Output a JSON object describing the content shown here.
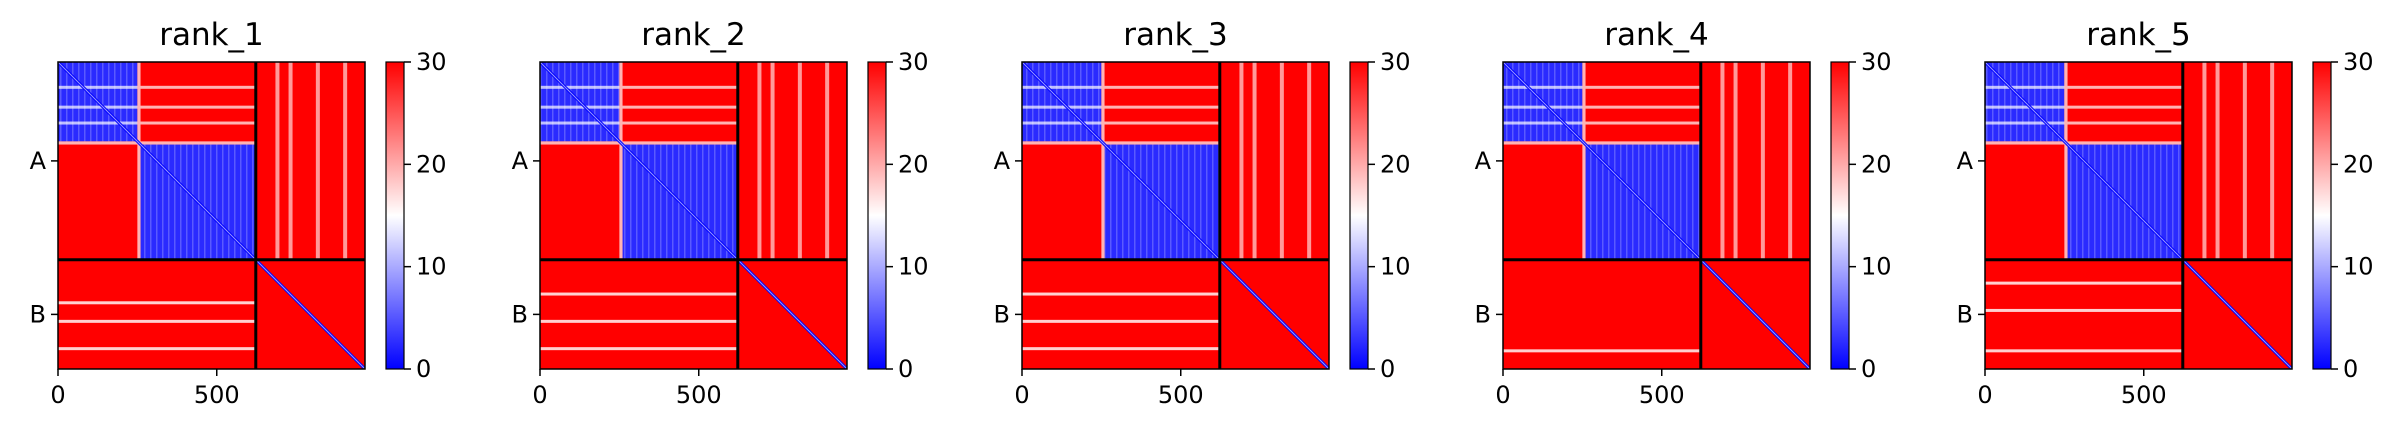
{
  "chart_data": [
    {
      "type": "heatmap",
      "title": "rank_1",
      "chains": [
        {
          "label": "A",
          "start": 0,
          "end": 623
        },
        {
          "label": "B",
          "start": 623,
          "end": 967
        }
      ],
      "xticks": [
        0,
        500
      ],
      "xlim": [
        0,
        967
      ],
      "colorbar": {
        "min": 0,
        "max": 30,
        "ticks": [
          0,
          10,
          20,
          30
        ],
        "colors": [
          "#0000ff",
          "#ffffff",
          "#ff0000"
        ]
      },
      "blue_blocks": [
        [
          0,
          250
        ],
        [
          260,
          623
        ]
      ],
      "b_row_lines": [
        0.38,
        0.55,
        0.8
      ]
    },
    {
      "type": "heatmap",
      "title": "rank_2",
      "chains": [
        {
          "label": "A",
          "start": 0,
          "end": 623
        },
        {
          "label": "B",
          "start": 623,
          "end": 967
        }
      ],
      "xticks": [
        0,
        500
      ],
      "xlim": [
        0,
        967
      ],
      "colorbar": {
        "min": 0,
        "max": 30,
        "ticks": [
          0,
          10,
          20,
          30
        ],
        "colors": [
          "#0000ff",
          "#ffffff",
          "#ff0000"
        ]
      },
      "blue_blocks": [
        [
          0,
          250
        ],
        [
          260,
          623
        ]
      ],
      "b_row_lines": [
        0.3,
        0.55,
        0.8
      ]
    },
    {
      "type": "heatmap",
      "title": "rank_3",
      "chains": [
        {
          "label": "A",
          "start": 0,
          "end": 623
        },
        {
          "label": "B",
          "start": 623,
          "end": 967
        }
      ],
      "xticks": [
        0,
        500
      ],
      "xlim": [
        0,
        967
      ],
      "colorbar": {
        "min": 0,
        "max": 30,
        "ticks": [
          0,
          10,
          20,
          30
        ],
        "colors": [
          "#0000ff",
          "#ffffff",
          "#ff0000"
        ]
      },
      "blue_blocks": [
        [
          0,
          250
        ],
        [
          260,
          623
        ]
      ],
      "b_row_lines": [
        0.3,
        0.55,
        0.8
      ]
    },
    {
      "type": "heatmap",
      "title": "rank_4",
      "chains": [
        {
          "label": "A",
          "start": 0,
          "end": 623
        },
        {
          "label": "B",
          "start": 623,
          "end": 967
        }
      ],
      "xticks": [
        0,
        500
      ],
      "xlim": [
        0,
        967
      ],
      "colorbar": {
        "min": 0,
        "max": 30,
        "ticks": [
          0,
          10,
          20,
          30
        ],
        "colors": [
          "#0000ff",
          "#ffffff",
          "#ff0000"
        ]
      },
      "blue_blocks": [
        [
          0,
          250
        ],
        [
          260,
          623
        ]
      ],
      "b_row_lines": [
        0.82
      ]
    },
    {
      "type": "heatmap",
      "title": "rank_5",
      "chains": [
        {
          "label": "A",
          "start": 0,
          "end": 623
        },
        {
          "label": "B",
          "start": 623,
          "end": 967
        }
      ],
      "xticks": [
        0,
        500
      ],
      "xlim": [
        0,
        967
      ],
      "colorbar": {
        "min": 0,
        "max": 30,
        "ticks": [
          0,
          10,
          20,
          30
        ],
        "colors": [
          "#0000ff",
          "#ffffff",
          "#ff0000"
        ]
      },
      "blue_blocks": [
        [
          0,
          250
        ],
        [
          260,
          623
        ]
      ],
      "b_row_lines": [
        0.2,
        0.45,
        0.82
      ]
    }
  ]
}
